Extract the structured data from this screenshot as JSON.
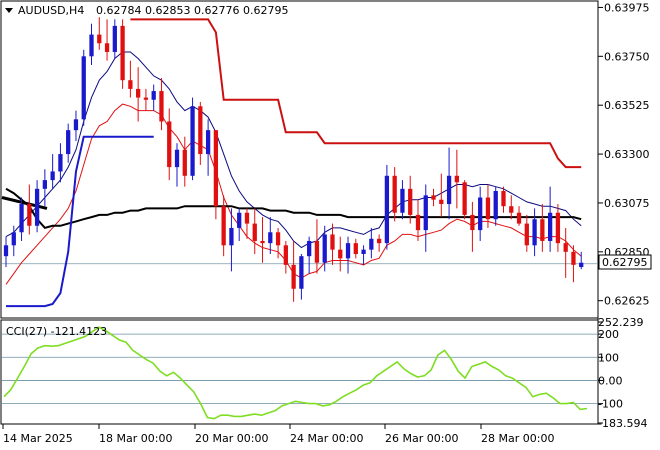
{
  "header": {
    "symbol": "AUDUSD,H4",
    "ohlc": "0.62784 0.62853 0.62776 0.62795"
  },
  "price_panel": {
    "ticks": [
      "0.63975",
      "0.63750",
      "0.63525",
      "0.63300",
      "0.63075",
      "0.62850",
      "0.62625"
    ],
    "current_price": "0.62795"
  },
  "cci_panel": {
    "title": "CCI(27) -121.4123",
    "ticks": [
      "252.239",
      "200",
      "100",
      "0.00",
      "-100",
      "-183.594"
    ]
  },
  "x_axis": {
    "labels": [
      "14 Mar 2025",
      "18 Mar 00:00",
      "20 Mar 00:00",
      "24 Mar 00:00",
      "26 Mar 00:00",
      "28 Mar 00:00"
    ]
  },
  "colors": {
    "bull": "#1a1acc",
    "bear": "#e01010",
    "ma_black": "#000000",
    "envelope_upper": "#e01010",
    "envelope_lower": "#1a1acc",
    "band_blue": "#0a0a80",
    "band_red": "#cc1010",
    "cci_line": "#7fdd22",
    "price_label_bg": "#ffffff"
  },
  "chart_data": [
    {
      "type": "candlestick",
      "title": "AUDUSD,H4",
      "ylim": [
        0.6255,
        0.64
      ],
      "candles": [
        [
          0.6283,
          0.6292,
          0.6278,
          0.6288
        ],
        [
          0.6288,
          0.6297,
          0.6283,
          0.6294
        ],
        [
          0.6294,
          0.631,
          0.629,
          0.6307
        ],
        [
          0.6307,
          0.6316,
          0.6293,
          0.6297
        ],
        [
          0.6297,
          0.6318,
          0.6294,
          0.6314
        ],
        [
          0.6314,
          0.6323,
          0.6306,
          0.6318
        ],
        [
          0.6318,
          0.633,
          0.6314,
          0.6322
        ],
        [
          0.6322,
          0.6335,
          0.6317,
          0.633
        ],
        [
          0.633,
          0.6344,
          0.6326,
          0.6341
        ],
        [
          0.6341,
          0.635,
          0.6336,
          0.6346
        ],
        [
          0.6346,
          0.6378,
          0.6343,
          0.6375
        ],
        [
          0.6375,
          0.639,
          0.6371,
          0.6385
        ],
        [
          0.6385,
          0.6393,
          0.6378,
          0.6381
        ],
        [
          0.6381,
          0.6392,
          0.6373,
          0.6377
        ],
        [
          0.6377,
          0.6392,
          0.6374,
          0.6389
        ],
        [
          0.6389,
          0.6392,
          0.636,
          0.6364
        ],
        [
          0.6364,
          0.6373,
          0.6356,
          0.636
        ],
        [
          0.636,
          0.637,
          0.6345,
          0.6356
        ],
        [
          0.6356,
          0.636,
          0.635,
          0.6355
        ],
        [
          0.6355,
          0.6362,
          0.635,
          0.6359
        ],
        [
          0.6359,
          0.6365,
          0.6341,
          0.6345
        ],
        [
          0.6345,
          0.6351,
          0.6318,
          0.6324
        ],
        [
          0.6324,
          0.6335,
          0.6315,
          0.6332
        ],
        [
          0.6332,
          0.6338,
          0.6315,
          0.632
        ],
        [
          0.632,
          0.6356,
          0.6318,
          0.6352
        ],
        [
          0.6352,
          0.6354,
          0.6325,
          0.633
        ],
        [
          0.633,
          0.6346,
          0.632,
          0.6341
        ],
        [
          0.6341,
          0.6341,
          0.63,
          0.6306
        ],
        [
          0.6306,
          0.6311,
          0.6283,
          0.6288
        ],
        [
          0.6288,
          0.6305,
          0.6276,
          0.6296
        ],
        [
          0.6296,
          0.6305,
          0.629,
          0.6303
        ],
        [
          0.6303,
          0.6305,
          0.6291,
          0.6298
        ],
        [
          0.6298,
          0.6305,
          0.6284,
          0.629
        ],
        [
          0.629,
          0.6301,
          0.628,
          0.6289
        ],
        [
          0.6289,
          0.6301,
          0.6284,
          0.6294
        ],
        [
          0.6294,
          0.6296,
          0.6282,
          0.6288
        ],
        [
          0.6288,
          0.629,
          0.6275,
          0.6279
        ],
        [
          0.6279,
          0.629,
          0.6262,
          0.6268
        ],
        [
          0.6268,
          0.6284,
          0.6263,
          0.6283
        ],
        [
          0.6283,
          0.6292,
          0.6275,
          0.629
        ],
        [
          0.629,
          0.63,
          0.6275,
          0.628
        ],
        [
          0.628,
          0.6297,
          0.6276,
          0.6293
        ],
        [
          0.6293,
          0.6298,
          0.6279,
          0.6286
        ],
        [
          0.6286,
          0.6292,
          0.6276,
          0.6282
        ],
        [
          0.6282,
          0.6292,
          0.6275,
          0.6289
        ],
        [
          0.6289,
          0.6291,
          0.6282,
          0.6284
        ],
        [
          0.6284,
          0.6288,
          0.6279,
          0.6286
        ],
        [
          0.6286,
          0.6296,
          0.6282,
          0.6291
        ],
        [
          0.6291,
          0.6293,
          0.6285,
          0.6289
        ],
        [
          0.6289,
          0.6325,
          0.6286,
          0.632
        ],
        [
          0.632,
          0.6324,
          0.6299,
          0.6303
        ],
        [
          0.6303,
          0.6318,
          0.63,
          0.6314
        ],
        [
          0.6314,
          0.632,
          0.6298,
          0.6302
        ],
        [
          0.6302,
          0.6309,
          0.629,
          0.6295
        ],
        [
          0.6295,
          0.6316,
          0.6285,
          0.6311
        ],
        [
          0.6311,
          0.6314,
          0.6306,
          0.6309
        ],
        [
          0.6309,
          0.6321,
          0.6301,
          0.6307
        ],
        [
          0.6307,
          0.6333,
          0.63,
          0.632
        ],
        [
          0.632,
          0.6332,
          0.6305,
          0.6317
        ],
        [
          0.6317,
          0.6318,
          0.63,
          0.6302
        ],
        [
          0.6302,
          0.6308,
          0.6285,
          0.6295
        ],
        [
          0.6295,
          0.6315,
          0.629,
          0.631
        ],
        [
          0.631,
          0.6316,
          0.6296,
          0.63
        ],
        [
          0.63,
          0.6315,
          0.6297,
          0.6313
        ],
        [
          0.6313,
          0.6315,
          0.6303,
          0.6306
        ],
        [
          0.6306,
          0.6311,
          0.63,
          0.6303
        ],
        [
          0.6303,
          0.6306,
          0.6297,
          0.6298
        ],
        [
          0.6298,
          0.6302,
          0.6285,
          0.6288
        ],
        [
          0.6288,
          0.6305,
          0.6283,
          0.63
        ],
        [
          0.63,
          0.6307,
          0.6285,
          0.629
        ],
        [
          0.629,
          0.6315,
          0.6285,
          0.6303
        ],
        [
          0.6303,
          0.6307,
          0.6285,
          0.6289
        ],
        [
          0.6289,
          0.6296,
          0.6273,
          0.6285
        ],
        [
          0.6285,
          0.6288,
          0.6271,
          0.6279
        ],
        [
          0.6278,
          0.6285,
          0.6277,
          0.628
        ]
      ],
      "ma_black": [
        0.6314,
        0.6312,
        0.6309,
        0.6306,
        0.63,
        0.6296,
        0.6297,
        0.6297,
        0.6298,
        0.6299,
        0.63,
        0.6301,
        0.6302,
        0.6302,
        0.6303,
        0.6303,
        0.6304,
        0.6304,
        0.6305,
        0.6305,
        0.6305,
        0.6305,
        0.6305,
        0.6306,
        0.6306,
        0.6306,
        0.6306,
        0.6306,
        0.6306,
        0.6306,
        0.6305,
        0.6305,
        0.6305,
        0.6305,
        0.6304,
        0.6304,
        0.6304,
        0.6303,
        0.6303,
        0.6303,
        0.6302,
        0.6302,
        0.6302,
        0.6302,
        0.6301,
        0.6301,
        0.6301,
        0.6301,
        0.6301,
        0.6301,
        0.6301,
        0.6301,
        0.6301,
        0.6301,
        0.6301,
        0.6301,
        0.6301,
        0.6301,
        0.6301,
        0.6301,
        0.6301,
        0.6301,
        0.6301,
        0.6301,
        0.6301,
        0.6301,
        0.6301,
        0.6301,
        0.6301,
        0.6301,
        0.6301,
        0.6301,
        0.6301,
        0.6301,
        0.63
      ],
      "envelope_upper": [
        0.6292,
        0.6294,
        0.6298,
        0.6302,
        0.6306,
        0.631,
        0.6314,
        0.6318,
        0.6324,
        0.6332,
        0.6345,
        0.6356,
        0.6364,
        0.6368,
        0.6374,
        0.6377,
        0.6377,
        0.6374,
        0.637,
        0.6366,
        0.6364,
        0.636,
        0.6354,
        0.635,
        0.6352,
        0.635,
        0.6347,
        0.634,
        0.633,
        0.632,
        0.6313,
        0.6308,
        0.6305,
        0.6302,
        0.63,
        0.6299,
        0.6295,
        0.629,
        0.6287,
        0.6289,
        0.629,
        0.6294,
        0.6296,
        0.6296,
        0.6295,
        0.6294,
        0.6293,
        0.6295,
        0.6296,
        0.6302,
        0.6305,
        0.6308,
        0.6309,
        0.6309,
        0.631,
        0.631,
        0.6312,
        0.6314,
        0.6316,
        0.6316,
        0.6315,
        0.6316,
        0.6316,
        0.6315,
        0.6314,
        0.6312,
        0.631,
        0.6308,
        0.6307,
        0.6306,
        0.6306,
        0.6305,
        0.6304,
        0.63,
        0.6297
      ],
      "envelope_lower": [
        0.627,
        0.6275,
        0.628,
        0.6284,
        0.6288,
        0.6292,
        0.6296,
        0.63,
        0.6305,
        0.6313,
        0.6325,
        0.6337,
        0.6343,
        0.6345,
        0.635,
        0.6353,
        0.6352,
        0.635,
        0.635,
        0.635,
        0.6348,
        0.6342,
        0.6338,
        0.6332,
        0.6336,
        0.6334,
        0.6332,
        0.6322,
        0.631,
        0.6302,
        0.6297,
        0.6292,
        0.6289,
        0.6287,
        0.6286,
        0.6285,
        0.6281,
        0.6275,
        0.6273,
        0.6275,
        0.6276,
        0.628,
        0.6281,
        0.6281,
        0.6281,
        0.628,
        0.6279,
        0.6281,
        0.6282,
        0.6288,
        0.629,
        0.6293,
        0.6293,
        0.6292,
        0.6293,
        0.6294,
        0.6295,
        0.6298,
        0.63,
        0.6299,
        0.6297,
        0.6299,
        0.6299,
        0.6298,
        0.6297,
        0.6296,
        0.6294,
        0.6292,
        0.6292,
        0.6291,
        0.6292,
        0.6292,
        0.629,
        0.6286,
        0.6283
      ],
      "band_blue": [
        0.626,
        0.626,
        0.626,
        0.626,
        0.626,
        0.626,
        0.6261,
        0.6266,
        0.6285,
        0.6322,
        0.6338,
        0.6338,
        0.6338,
        0.6338,
        0.6338,
        0.6338,
        0.6338,
        0.6338,
        0.6338,
        0.6338
      ],
      "band_blue_start": 0,
      "band_red": [
        0.6392,
        0.6392,
        0.6392,
        0.6392,
        0.6392,
        0.6392,
        0.6392,
        0.6392,
        0.6392,
        0.6392,
        0.6392,
        0.6386,
        0.6355,
        0.6355,
        0.6355,
        0.6355,
        0.6355,
        0.6355,
        0.6355,
        0.6355,
        0.634,
        0.634,
        0.634,
        0.634,
        0.634,
        0.6335,
        0.6335,
        0.6335,
        0.6335,
        0.6335,
        0.6335,
        0.6335,
        0.6335,
        0.6335,
        0.6335,
        0.6335,
        0.6335,
        0.6335,
        0.6335,
        0.6335,
        0.6335,
        0.6335,
        0.6335,
        0.6335,
        0.6335,
        0.6335,
        0.6335,
        0.6335,
        0.6335,
        0.6335,
        0.6335,
        0.6335,
        0.6335,
        0.6335,
        0.6335,
        0.6328,
        0.6324,
        0.6324,
        0.6324
      ],
      "band_red_start": 16,
      "ma_black_short": [
        0.6314,
        0.6312,
        0.6309,
        0.6306,
        0.63
      ]
    },
    {
      "type": "line",
      "title": "CCI(27) -121.4123",
      "ylim": [
        -183.594,
        252.239
      ],
      "levels": [
        200,
        100,
        0,
        -100
      ],
      "series": [
        {
          "values": [
            -70,
            -40,
            10,
            60,
            115,
            140,
            150,
            148,
            150,
            160,
            170,
            180,
            190,
            210,
            230,
            215,
            195,
            175,
            165,
            130,
            110,
            90,
            75,
            40,
            20,
            35,
            10,
            -20,
            -50,
            -100,
            -160,
            -165,
            -150,
            -150,
            -155,
            -155,
            -150,
            -145,
            -150,
            -140,
            -130,
            -110,
            -100,
            -90,
            -95,
            -100,
            -100,
            -110,
            -105,
            -90,
            -70,
            -55,
            -40,
            -20,
            -10,
            20,
            40,
            60,
            80,
            50,
            30,
            15,
            20,
            45,
            110,
            130,
            90,
            40,
            10,
            60,
            70,
            80,
            60,
            45,
            20,
            10,
            -10,
            -30,
            -70,
            -60,
            -55,
            -75,
            -100,
            -100,
            -95,
            -125,
            -121
          ]
        }
      ]
    }
  ]
}
